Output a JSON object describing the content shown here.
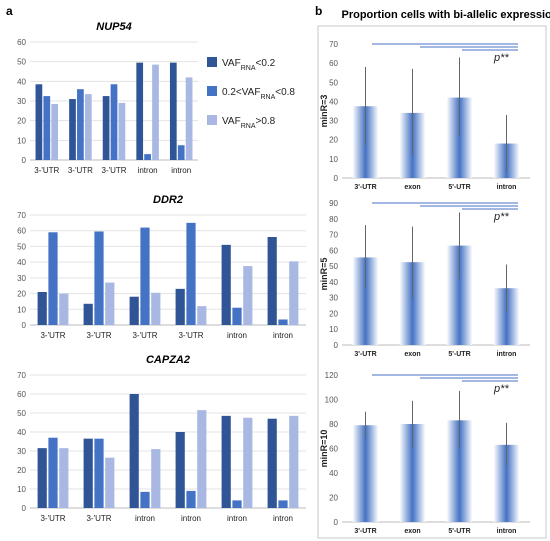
{
  "panel_a": "a",
  "panel_b": "b",
  "legend": {
    "items": [
      {
        "color": "#2F5597",
        "prefix": "VAF",
        "sub": "RNA",
        "suffix": "<0.2"
      },
      {
        "color": "#4472C4",
        "prefix": "0.2<VAF",
        "sub": "RNA",
        "suffix": "<0.8"
      },
      {
        "color": "#A9B8E3",
        "prefix": "VAF",
        "sub": "RNA",
        "suffix": ">0.8"
      }
    ]
  },
  "right_title": "Proportion cells with bi-allelic expression",
  "p_label": "p**",
  "chart_data": [
    {
      "type": "bar",
      "title": "NUP54",
      "categories": [
        "3-'UTR",
        "3-'UTR",
        "3-'UTR",
        "intron",
        "intron"
      ],
      "ylim": [
        0,
        60
      ],
      "yticks": [
        0,
        10,
        20,
        30,
        40,
        50,
        60
      ],
      "series": [
        {
          "name": "VAF<0.2",
          "values": [
            38.5,
            31,
            32.5,
            49.5,
            49.5
          ]
        },
        {
          "name": "0.2<VAF<0.8",
          "values": [
            32.5,
            36,
            38.5,
            3,
            7.5
          ]
        },
        {
          "name": "VAF>0.8",
          "values": [
            28.5,
            33.5,
            29,
            48.5,
            42
          ]
        }
      ]
    },
    {
      "type": "bar",
      "title": "DDR2",
      "categories": [
        "3-'UTR",
        "3-'UTR",
        "3-'UTR",
        "3-'UTR",
        "intron",
        "intron"
      ],
      "ylim": [
        0,
        70
      ],
      "yticks": [
        0,
        10,
        20,
        30,
        40,
        50,
        60,
        70
      ],
      "series": [
        {
          "name": "VAF<0.2",
          "values": [
            21,
            13.5,
            18,
            23,
            51,
            56
          ]
        },
        {
          "name": "0.2<VAF<0.8",
          "values": [
            59,
            59.5,
            62,
            65,
            11,
            3.5
          ]
        },
        {
          "name": "VAF>0.8",
          "values": [
            20,
            27,
            20.5,
            12,
            37.5,
            40.5
          ]
        }
      ]
    },
    {
      "type": "bar",
      "title": "CAPZA2",
      "categories": [
        "3-'UTR",
        "3-'UTR",
        "intron",
        "intron",
        "intron",
        "intron"
      ],
      "ylim": [
        0,
        70
      ],
      "yticks": [
        0,
        10,
        20,
        30,
        40,
        50,
        60,
        70
      ],
      "series": [
        {
          "name": "VAF<0.2",
          "values": [
            31.5,
            36.5,
            60,
            40,
            48.5,
            47
          ]
        },
        {
          "name": "0.2<VAF<0.8",
          "values": [
            37,
            36.5,
            8.5,
            9,
            4,
            4
          ]
        },
        {
          "name": "VAF>0.8",
          "values": [
            31.5,
            26.5,
            31,
            51.5,
            47.5,
            48.5
          ]
        }
      ]
    },
    {
      "type": "bar",
      "ylabel": "minR=3",
      "categories": [
        "3'-UTR",
        "exon",
        "5'-UTR",
        "intron"
      ],
      "ylim": [
        0,
        70
      ],
      "yticks": [
        0,
        10,
        20,
        30,
        40,
        50,
        60,
        70
      ],
      "values": [
        37.5,
        34,
        42,
        18
      ],
      "errors": [
        [
          17,
          58
        ],
        [
          12,
          57
        ],
        [
          22,
          63
        ],
        [
          3,
          33
        ]
      ]
    },
    {
      "type": "bar",
      "ylabel": "minR=5",
      "categories": [
        "3'-UTR",
        "exon",
        "5'-UTR",
        "intron"
      ],
      "ylim": [
        0,
        90
      ],
      "yticks": [
        0,
        10,
        20,
        30,
        40,
        50,
        60,
        70,
        80,
        90
      ],
      "values": [
        55.5,
        52.5,
        63,
        36
      ],
      "errors": [
        [
          36,
          76
        ],
        [
          30,
          75
        ],
        [
          42,
          84
        ],
        [
          21,
          51
        ]
      ]
    },
    {
      "type": "bar",
      "ylabel": "minR=10",
      "categories": [
        "3'-UTR",
        "exon",
        "5'-UTR",
        "intron"
      ],
      "ylim": [
        0,
        120
      ],
      "yticks": [
        0,
        20,
        40,
        60,
        80,
        100,
        120
      ],
      "values": [
        79,
        80,
        83,
        63
      ],
      "errors": [
        [
          68,
          90
        ],
        [
          61,
          99
        ],
        [
          60,
          107
        ],
        [
          46,
          81
        ]
      ]
    }
  ]
}
